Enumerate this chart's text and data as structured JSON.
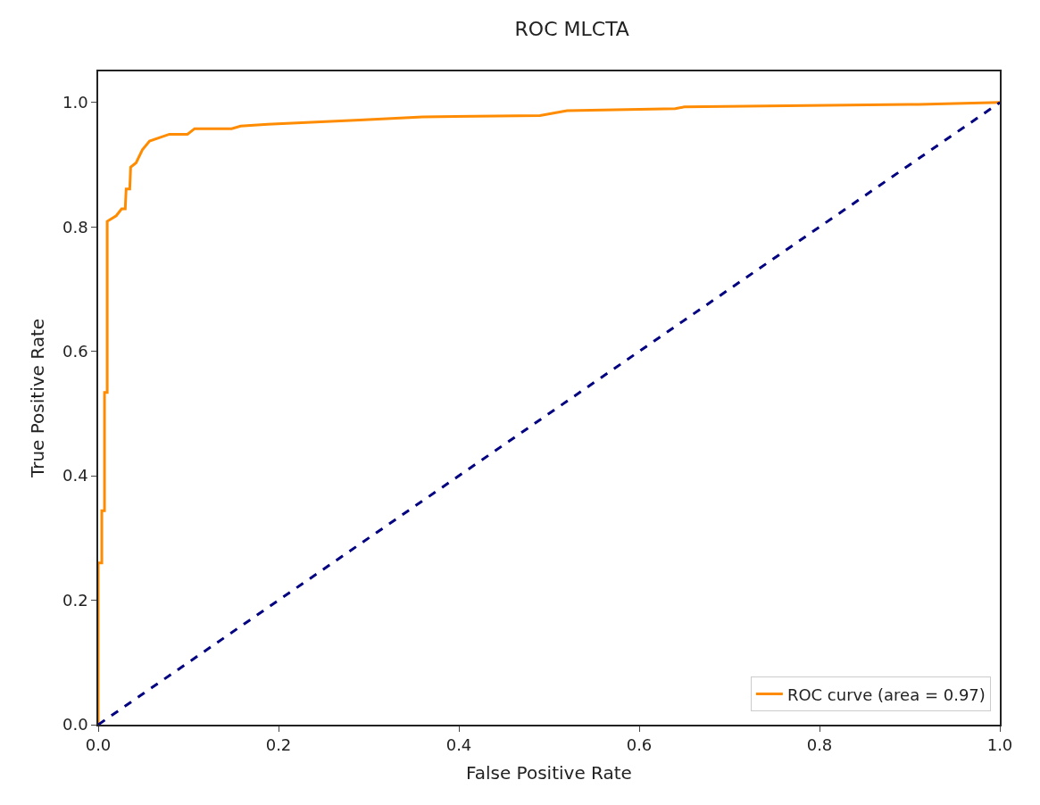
{
  "chart_data": {
    "type": "line",
    "title": "ROC MLCTA",
    "xlabel": "False Positive Rate",
    "ylabel": "True Positive Rate",
    "xlim": [
      0,
      1
    ],
    "ylim": [
      0,
      1.05
    ],
    "xticks": [
      {
        "value": 0,
        "label": "0.0"
      },
      {
        "value": 0.2,
        "label": "0.2"
      },
      {
        "value": 0.4,
        "label": "0.4"
      },
      {
        "value": 0.6,
        "label": "0.6"
      },
      {
        "value": 0.8,
        "label": "0.8"
      },
      {
        "value": 1,
        "label": "1.0"
      }
    ],
    "yticks": [
      {
        "value": 0,
        "label": "0.0"
      },
      {
        "value": 0.2,
        "label": "0.2"
      },
      {
        "value": 0.4,
        "label": "0.4"
      },
      {
        "value": 0.6,
        "label": "0.6"
      },
      {
        "value": 0.8,
        "label": "0.8"
      },
      {
        "value": 1,
        "label": "1.0"
      }
    ],
    "legend": "bottom right",
    "marker": "none",
    "series": [
      {
        "name": "ROC curve (area = 0.97)",
        "color": "#ff8c00",
        "line_style": "solid",
        "x": [
          0,
          0,
          0.004,
          0.004,
          0.007,
          0.007,
          0.01,
          0.01,
          0.02,
          0.026,
          0.03,
          0.031,
          0.035,
          0.036,
          0.042,
          0.049,
          0.057,
          0.069,
          0.079,
          0.099,
          0.107,
          0.148,
          0.158,
          0.188,
          0.29,
          0.36,
          0.49,
          0.52,
          0.64,
          0.65,
          0.91,
          1.0
        ],
        "values": [
          0,
          0.26,
          0.26,
          0.344,
          0.344,
          0.534,
          0.534,
          0.809,
          0.818,
          0.829,
          0.829,
          0.861,
          0.861,
          0.896,
          0.903,
          0.924,
          0.938,
          0.944,
          0.949,
          0.949,
          0.958,
          0.958,
          0.962,
          0.965,
          0.972,
          0.977,
          0.979,
          0.987,
          0.99,
          0.993,
          0.997,
          1.0
        ]
      },
      {
        "color": "#000080",
        "line_style": "dashed",
        "x": [
          0,
          1
        ],
        "values": [
          0,
          1
        ]
      }
    ]
  }
}
